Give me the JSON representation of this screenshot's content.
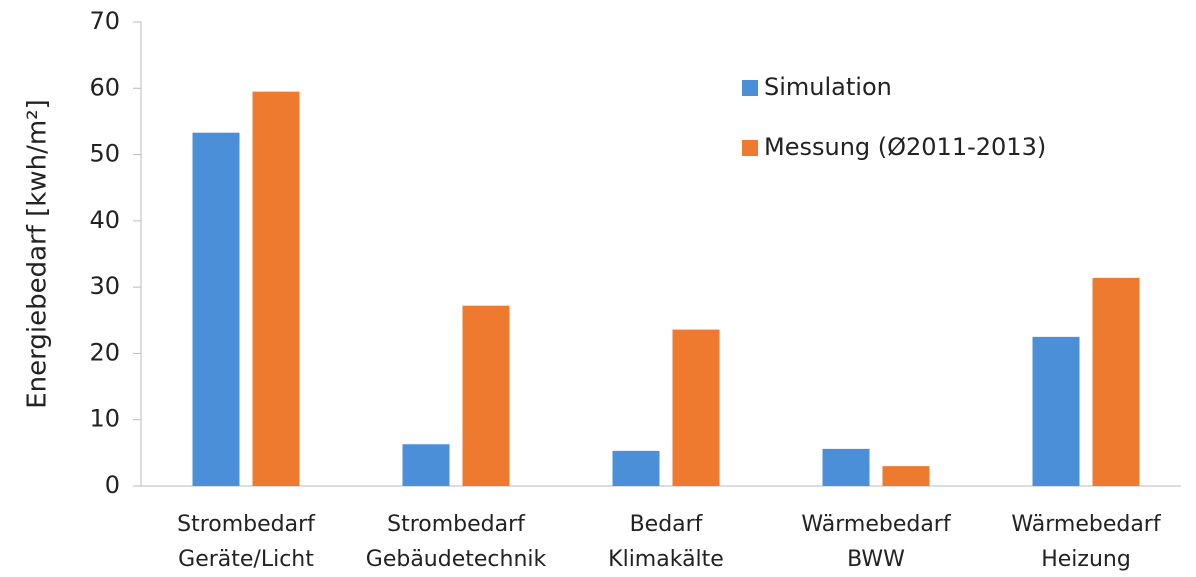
{
  "chart_data": {
    "type": "bar",
    "y_label": "Energiebedarf [kwh/m²]",
    "categories": [
      "Strombedarf\nGeräte/Licht",
      "Strombedarf\nGebäudetechnik",
      "Bedarf\nKlimakälte",
      "Wärmebedarf\nBWW",
      "Wärmebedarf\nHeizung"
    ],
    "series": [
      {
        "name": "Simulation",
        "color": "#4a8fd8",
        "values": [
          53.3,
          6.3,
          5.3,
          5.6,
          22.5
        ]
      },
      {
        "name": "Messung (Ø2011-2013)",
        "color": "#ee7a30",
        "values": [
          59.5,
          27.2,
          23.6,
          3.0,
          31.4
        ]
      }
    ],
    "ylim": [
      0,
      70
    ],
    "yticks": [
      0,
      10,
      20,
      30,
      40,
      50,
      60,
      70
    ],
    "grid": false,
    "legend": "top-right"
  }
}
